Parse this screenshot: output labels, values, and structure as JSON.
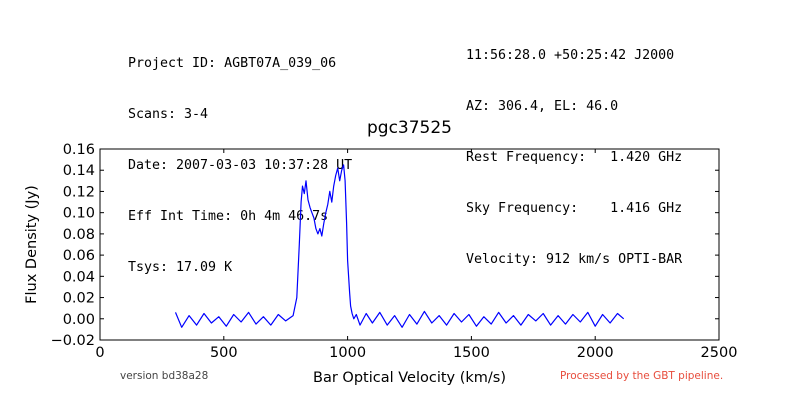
{
  "header_left": [
    "Project ID: AGBT07A_039_06",
    "Scans: 3-4",
    "Date: 2007-03-03 10:37:28 UT",
    "Eff Int Time: 0h 4m 46.7s",
    "Tsys: 17.09 K"
  ],
  "header_right": [
    "11:56:28.0 +50:25:42 J2000",
    "AZ: 306.4, EL: 46.0",
    "Rest Frequency:   1.420 GHz",
    "Sky Frequency:    1.416 GHz",
    "Velocity: 912 km/s OPTI-BAR"
  ],
  "footer": {
    "version": "version bd38a28",
    "pipeline": "Processed by the GBT pipeline.",
    "pipeline_color": "#e74c3c"
  },
  "chart_data": {
    "type": "line",
    "title": "pgc37525",
    "xlabel": "Bar Optical Velocity (km/s)",
    "ylabel": "Flux Density (Jy)",
    "xlim": [
      0,
      2500
    ],
    "ylim": [
      -0.02,
      0.16
    ],
    "xticks": [
      0,
      500,
      1000,
      1500,
      2000,
      2500
    ],
    "xtick_labels": [
      "0",
      "500",
      "1000",
      "1500",
      "2000",
      "2500"
    ],
    "yticks": [
      -0.02,
      0.0,
      0.02,
      0.04,
      0.06,
      0.08,
      0.1,
      0.12,
      0.14,
      0.16
    ],
    "ytick_labels": [
      "−0.02",
      "0.00",
      "0.02",
      "0.04",
      "0.06",
      "0.08",
      "0.10",
      "0.12",
      "0.14",
      "0.16"
    ],
    "grid": false,
    "series": [
      {
        "color": "#0000ff",
        "x": [
          305,
          330,
          360,
          390,
          420,
          450,
          480,
          510,
          540,
          570,
          600,
          630,
          660,
          690,
          720,
          750,
          780,
          795,
          805,
          812,
          818,
          825,
          832,
          840,
          848,
          856,
          864,
          872,
          880,
          888,
          896,
          904,
          912,
          920,
          928,
          936,
          944,
          952,
          960,
          968,
          976,
          984,
          990,
          996,
          1000,
          1004,
          1008,
          1012,
          1018,
          1025,
          1035,
          1050,
          1075,
          1100,
          1130,
          1160,
          1190,
          1220,
          1250,
          1280,
          1310,
          1340,
          1370,
          1400,
          1430,
          1460,
          1490,
          1520,
          1550,
          1580,
          1610,
          1640,
          1670,
          1700,
          1730,
          1760,
          1790,
          1820,
          1850,
          1880,
          1910,
          1940,
          1970,
          2000,
          2030,
          2060,
          2090,
          2115
        ],
        "y": [
          0.006,
          -0.008,
          0.003,
          -0.006,
          0.005,
          -0.004,
          0.002,
          -0.007,
          0.004,
          -0.003,
          0.006,
          -0.005,
          0.002,
          -0.006,
          0.004,
          -0.002,
          0.003,
          0.02,
          0.07,
          0.11,
          0.125,
          0.118,
          0.13,
          0.112,
          0.105,
          0.1,
          0.095,
          0.085,
          0.08,
          0.085,
          0.078,
          0.09,
          0.1,
          0.108,
          0.12,
          0.11,
          0.125,
          0.135,
          0.142,
          0.13,
          0.14,
          0.145,
          0.13,
          0.09,
          0.055,
          0.04,
          0.025,
          0.012,
          0.005,
          0.0,
          0.004,
          -0.006,
          0.005,
          -0.004,
          0.006,
          -0.006,
          0.003,
          -0.008,
          0.004,
          -0.005,
          0.007,
          -0.004,
          0.003,
          -0.006,
          0.005,
          -0.003,
          0.004,
          -0.007,
          0.002,
          -0.005,
          0.006,
          -0.004,
          0.003,
          -0.006,
          0.004,
          -0.002,
          0.005,
          -0.006,
          0.003,
          -0.005,
          0.004,
          -0.003,
          0.006,
          -0.007,
          0.004,
          -0.004,
          0.005,
          0.0
        ]
      }
    ]
  }
}
